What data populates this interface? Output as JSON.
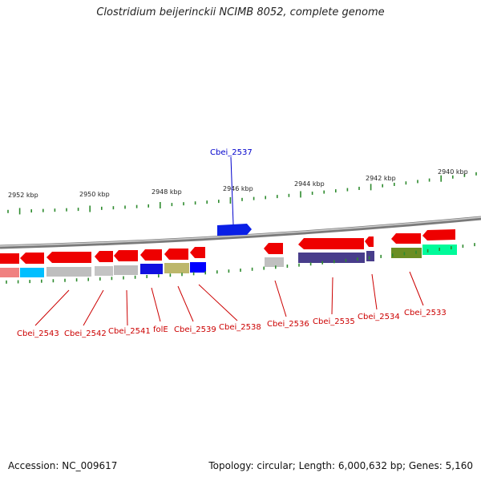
{
  "title": "Clostridium beijerinckii NCIMB 8052, complete genome",
  "footer": {
    "accession": "Accession: NC_009617",
    "summary": "Topology: circular; Length: 6,000,632 bp; Genes: 5,160"
  },
  "colors": {
    "backbone": "#9a9a9a",
    "tick": "#2e8b2e",
    "kbp_label": "#222222",
    "gene_label_top": "#0000cc",
    "gene_label_bottom": "#cc0000",
    "red_feature": "#ee0000",
    "blue_feature": "#0a1fe6"
  },
  "kbp_labels": [
    {
      "text": "2952 kbp"
    },
    {
      "text": "2950 kbp"
    },
    {
      "text": "2948 kbp"
    },
    {
      "text": "2946 kbp"
    },
    {
      "text": "2944 kbp"
    },
    {
      "text": "2942 kbp"
    },
    {
      "text": "2940 kbp"
    }
  ],
  "gene_labels": [
    {
      "text": "Cbei_2537",
      "color": "#0000cc"
    },
    {
      "text": "Cbei_2543",
      "color": "#cc0000"
    },
    {
      "text": "Cbei_2542",
      "color": "#cc0000"
    },
    {
      "text": "Cbei_2541",
      "color": "#cc0000"
    },
    {
      "text": "folE",
      "color": "#cc0000"
    },
    {
      "text": "Cbei_2539",
      "color": "#cc0000"
    },
    {
      "text": "Cbei_2538",
      "color": "#cc0000"
    },
    {
      "text": "Cbei_2536",
      "color": "#cc0000"
    },
    {
      "text": "Cbei_2535",
      "color": "#cc0000"
    },
    {
      "text": "Cbei_2534",
      "color": "#cc0000"
    },
    {
      "text": "Cbei_2533",
      "color": "#cc0000"
    }
  ],
  "cog_colors": [
    "#f08080",
    "#00bfff",
    "#bebebe",
    "#bebebe",
    "#bebebe",
    "#1010e0",
    "#bdb76b",
    "#0000ff",
    "#c0c0c0",
    "#483d8b",
    "#483d8b",
    "#6b8e23",
    "#00fa9a"
  ]
}
